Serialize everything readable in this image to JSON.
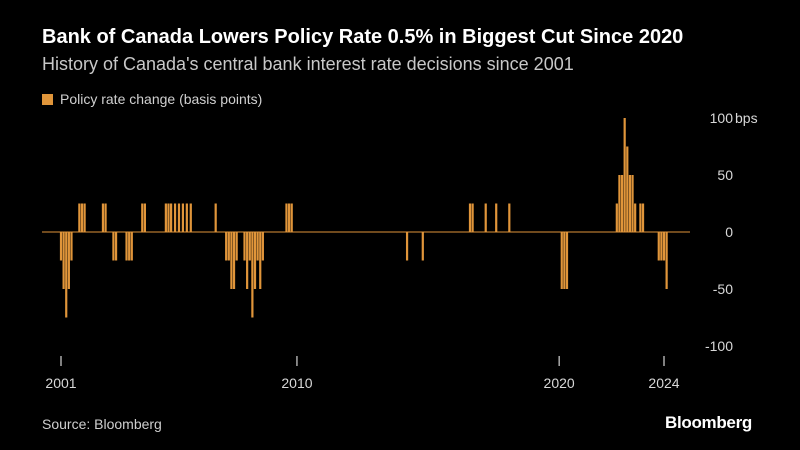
{
  "header": {
    "title": "Bank of Canada Lowers Policy Rate 0.5% in Biggest Cut Since 2020",
    "subtitle": "History of Canada's central bank interest rate decisions since 2001"
  },
  "footer": {
    "source": "Source: Bloomberg",
    "brand": "Bloomberg"
  },
  "colors": {
    "bar": "#e0953a",
    "background": "#000000",
    "zero_line": "#e0953a"
  },
  "chart_data": {
    "type": "bar",
    "title": "Bank of Canada Lowers Policy Rate 0.5% in Biggest Cut Since 2020",
    "subtitle": "History of Canada's central bank interest rate decisions since 2001",
    "legend": [
      "Policy rate change (basis points)"
    ],
    "legend_position": "top-left",
    "xlabel": "",
    "ylabel": "bps",
    "x_range": [
      2000.9,
      2025.0
    ],
    "ylim": [
      -100,
      100
    ],
    "y_ticks": [
      {
        "value": 100,
        "label": "100"
      },
      {
        "value": 50,
        "label": "50"
      },
      {
        "value": 0,
        "label": "0"
      },
      {
        "value": -50,
        "label": "-50"
      },
      {
        "value": -100,
        "label": "-100"
      }
    ],
    "y_unit_label": "bps",
    "x_ticks": [
      {
        "value": 2001,
        "label": "2001"
      },
      {
        "value": 2010,
        "label": "2010"
      },
      {
        "value": 2020,
        "label": "2020"
      },
      {
        "value": 2024,
        "label": "2024"
      }
    ],
    "series": [
      {
        "name": "Policy rate change (basis points)",
        "points": [
          {
            "x": 2001.0,
            "y": -25
          },
          {
            "x": 2001.1,
            "y": -50
          },
          {
            "x": 2001.2,
            "y": -75
          },
          {
            "x": 2001.3,
            "y": -50
          },
          {
            "x": 2001.4,
            "y": -25
          },
          {
            "x": 2001.7,
            "y": 25
          },
          {
            "x": 2001.8,
            "y": 25
          },
          {
            "x": 2001.9,
            "y": 25
          },
          {
            "x": 2002.6,
            "y": 25
          },
          {
            "x": 2002.7,
            "y": 25
          },
          {
            "x": 2003.0,
            "y": -25
          },
          {
            "x": 2003.1,
            "y": -25
          },
          {
            "x": 2003.5,
            "y": -25
          },
          {
            "x": 2003.6,
            "y": -25
          },
          {
            "x": 2003.7,
            "y": -25
          },
          {
            "x": 2004.1,
            "y": 25
          },
          {
            "x": 2004.2,
            "y": 25
          },
          {
            "x": 2005.0,
            "y": 25
          },
          {
            "x": 2005.1,
            "y": 25
          },
          {
            "x": 2005.2,
            "y": 25
          },
          {
            "x": 2005.35,
            "y": 25
          },
          {
            "x": 2005.5,
            "y": 25
          },
          {
            "x": 2005.65,
            "y": 25
          },
          {
            "x": 2005.8,
            "y": 25
          },
          {
            "x": 2005.95,
            "y": 25
          },
          {
            "x": 2006.9,
            "y": 25
          },
          {
            "x": 2007.3,
            "y": -25
          },
          {
            "x": 2007.4,
            "y": -25
          },
          {
            "x": 2007.5,
            "y": -50
          },
          {
            "x": 2007.6,
            "y": -50
          },
          {
            "x": 2007.7,
            "y": -25
          },
          {
            "x": 2008.0,
            "y": -25
          },
          {
            "x": 2008.1,
            "y": -50
          },
          {
            "x": 2008.2,
            "y": -25
          },
          {
            "x": 2008.3,
            "y": -75
          },
          {
            "x": 2008.4,
            "y": -50
          },
          {
            "x": 2008.5,
            "y": -25
          },
          {
            "x": 2008.6,
            "y": -50
          },
          {
            "x": 2008.7,
            "y": -25
          },
          {
            "x": 2009.6,
            "y": 25
          },
          {
            "x": 2009.7,
            "y": 25
          },
          {
            "x": 2009.8,
            "y": 25
          },
          {
            "x": 2014.2,
            "y": -25
          },
          {
            "x": 2014.8,
            "y": -25
          },
          {
            "x": 2016.6,
            "y": 25
          },
          {
            "x": 2016.7,
            "y": 25
          },
          {
            "x": 2017.2,
            "y": 25
          },
          {
            "x": 2017.6,
            "y": 25
          },
          {
            "x": 2018.1,
            "y": 25
          },
          {
            "x": 2020.1,
            "y": -50
          },
          {
            "x": 2020.2,
            "y": -50
          },
          {
            "x": 2020.3,
            "y": -50
          },
          {
            "x": 2022.2,
            "y": 25
          },
          {
            "x": 2022.3,
            "y": 50
          },
          {
            "x": 2022.4,
            "y": 50
          },
          {
            "x": 2022.5,
            "y": 100
          },
          {
            "x": 2022.6,
            "y": 75
          },
          {
            "x": 2022.7,
            "y": 50
          },
          {
            "x": 2022.8,
            "y": 50
          },
          {
            "x": 2022.9,
            "y": 25
          },
          {
            "x": 2023.1,
            "y": 25
          },
          {
            "x": 2023.2,
            "y": 25
          },
          {
            "x": 2023.8,
            "y": -25
          },
          {
            "x": 2023.9,
            "y": -25
          },
          {
            "x": 2024.0,
            "y": -25
          },
          {
            "x": 2024.1,
            "y": -50
          }
        ]
      }
    ]
  }
}
